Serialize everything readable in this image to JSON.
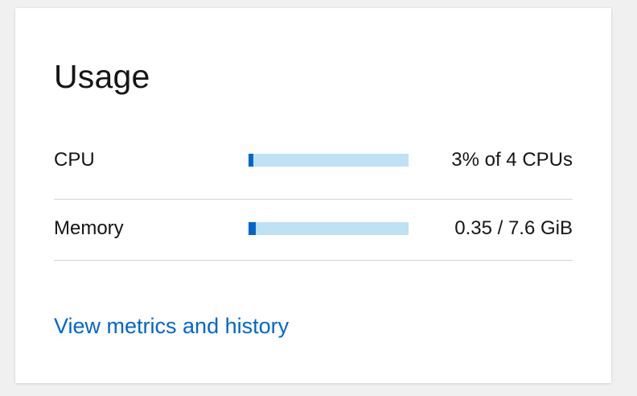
{
  "card": {
    "title": "Usage",
    "metrics": [
      {
        "label": "CPU",
        "value_text": "3% of 4 CPUs",
        "usage_fraction": 0.03
      },
      {
        "label": "Memory",
        "value_text": "0.35 / 7.6 GiB",
        "usage_fraction": 0.046
      }
    ],
    "link_label": "View metrics and history"
  },
  "colors": {
    "bar_fill": "#0066cc",
    "bar_track": "#bee1f4",
    "link": "#0066cc",
    "divider": "#d2d2d2"
  }
}
